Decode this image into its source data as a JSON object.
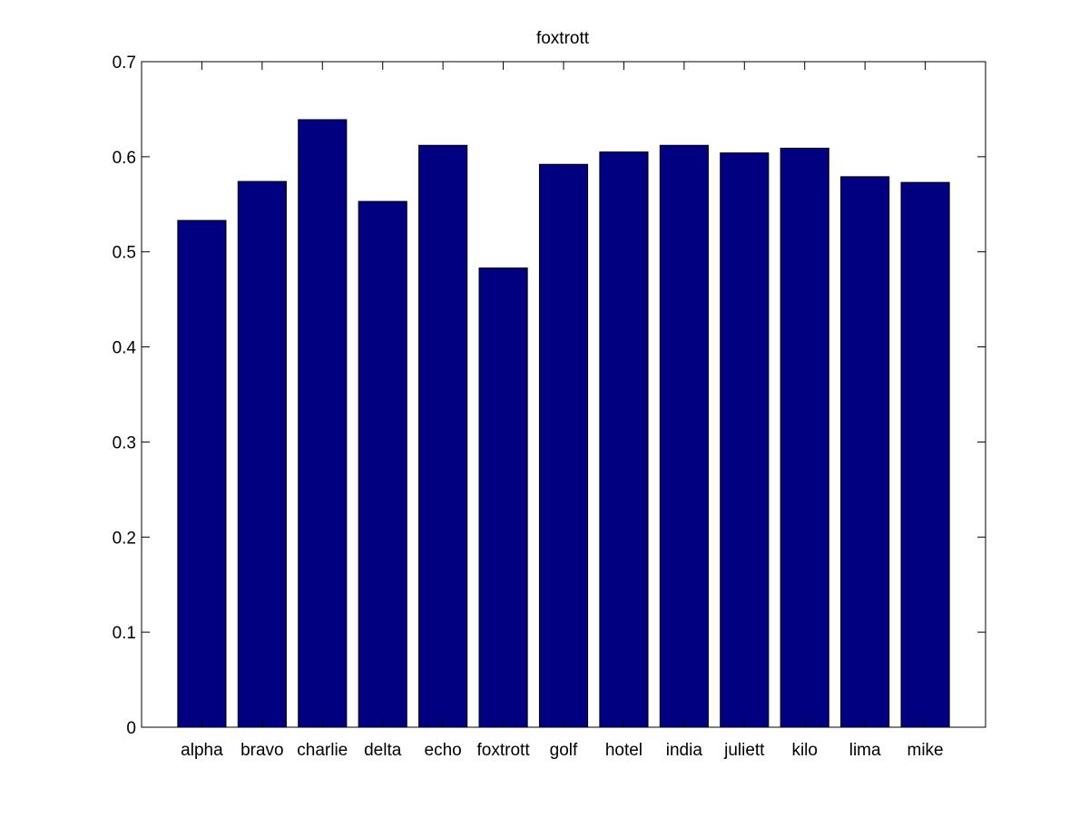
{
  "chart_data": {
    "type": "bar",
    "title": "foxtrott",
    "xlabel": "",
    "ylabel": "",
    "categories": [
      "alpha",
      "bravo",
      "charlie",
      "delta",
      "echo",
      "foxtrott",
      "golf",
      "hotel",
      "india",
      "juliett",
      "kilo",
      "lima",
      "mike"
    ],
    "values": [
      0.533,
      0.574,
      0.639,
      0.553,
      0.612,
      0.483,
      0.592,
      0.605,
      0.612,
      0.604,
      0.609,
      0.579,
      0.573
    ],
    "ylim": [
      0,
      0.7
    ],
    "yticks": [
      "0",
      "0.1",
      "0.2",
      "0.3",
      "0.4",
      "0.5",
      "0.6",
      "0.7"
    ],
    "grid": false,
    "legend": "none",
    "colors": {
      "bar": "#000080",
      "axes": "#000000",
      "background": "#ffffff"
    }
  }
}
